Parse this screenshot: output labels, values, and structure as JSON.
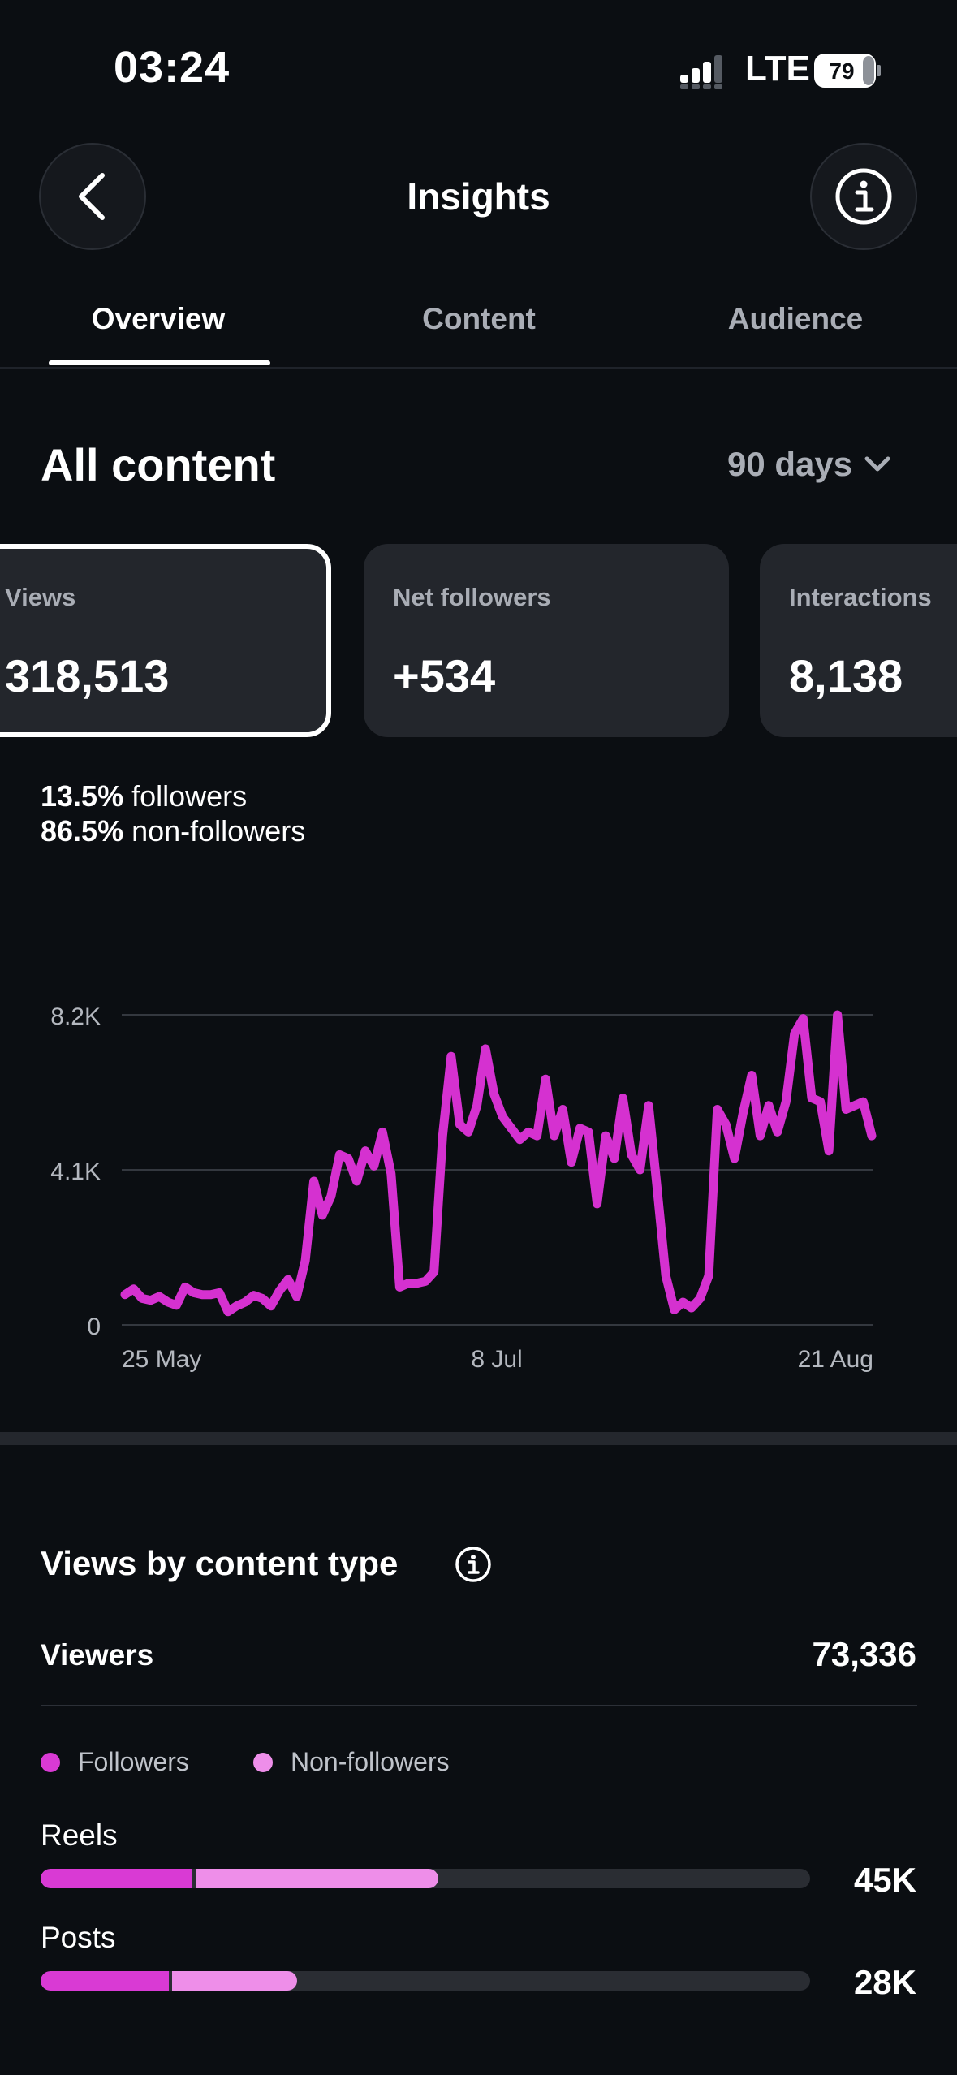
{
  "status_bar": {
    "time": "03:24",
    "carrier": "LTE",
    "battery": "79"
  },
  "header": {
    "title": "Insights"
  },
  "tabs": [
    {
      "label": "Overview",
      "active": true
    },
    {
      "label": "Content",
      "active": false
    },
    {
      "label": "Audience",
      "active": false
    }
  ],
  "section": {
    "title": "All content",
    "range": "90 days"
  },
  "metrics": [
    {
      "label": "Views",
      "value": "318,513",
      "selected": true
    },
    {
      "label": "Net followers",
      "value": "+534",
      "selected": false
    },
    {
      "label": "Interactions",
      "value": "8,138",
      "selected": false
    }
  ],
  "split": [
    {
      "pct": "13.5%",
      "label": "followers"
    },
    {
      "pct": "86.5%",
      "label": "non-followers"
    }
  ],
  "colors": {
    "accent": "#d531d0",
    "followers": "#d93ad4",
    "non_followers": "#ee8ee9",
    "track": "#2a2d33",
    "background": "#0b0e12",
    "card": "#23262c"
  },
  "chart_data": {
    "type": "line",
    "ylim": [
      0,
      8200
    ],
    "yticks": [
      "8.2K",
      "4.1K",
      "0"
    ],
    "ytick_values": [
      8200,
      4100,
      0
    ],
    "xticks": [
      "25 May",
      "8 Jul",
      "21 Aug"
    ],
    "grid": true,
    "series": [
      {
        "values": [
          800,
          950,
          700,
          650,
          750,
          600,
          520,
          1000,
          850,
          800,
          800,
          850,
          350,
          500,
          600,
          780,
          700,
          500,
          900,
          1200,
          750,
          1700,
          3800,
          2900,
          3400,
          4500,
          4400,
          3800,
          4600,
          4200,
          5100,
          4000,
          1000,
          1100,
          1100,
          1150,
          1400,
          5000,
          7100,
          5300,
          5100,
          5800,
          7300,
          6100,
          5500,
          5200,
          4900,
          5100,
          5000,
          6500,
          5000,
          5700,
          4300,
          5200,
          5100,
          3200,
          5000,
          4400,
          6000,
          4500,
          4100,
          5800,
          3600,
          1300,
          400,
          600,
          450,
          700,
          1300,
          5700,
          5300,
          4400,
          5600,
          6600,
          5000,
          5800,
          5100,
          5900,
          7700,
          8100,
          6000,
          5900,
          4600,
          8200,
          5700,
          5800,
          5900,
          5000
        ]
      }
    ]
  },
  "views_by_type": {
    "title": "Views by content type",
    "viewers_label": "Viewers",
    "viewers_value": "73,336",
    "legend": [
      "Followers",
      "Non-followers"
    ],
    "rows": [
      {
        "label": "Reels",
        "value": "45K",
        "followers_fraction": 0.197,
        "non_followers_fraction": 0.32
      },
      {
        "label": "Posts",
        "value": "28K",
        "followers_fraction": 0.167,
        "non_followers_fraction": 0.166
      }
    ]
  }
}
